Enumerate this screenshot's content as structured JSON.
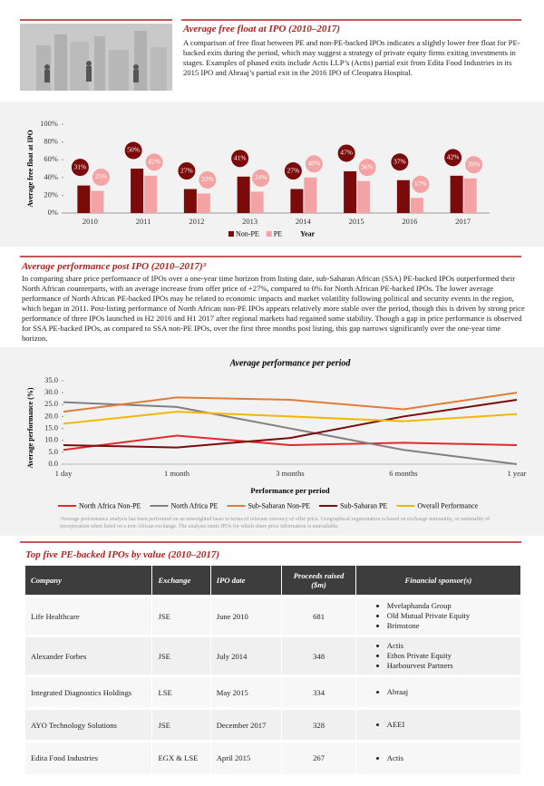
{
  "free_float": {
    "title": "Average free float at IPO (2010–2017)",
    "text": "A comparison of free float between PE and non-PE-backed IPOs indicates a slightly lower free float for PE-backed exits during the period, which may suggest a strategy of private equity firms exiting investments in stages. Examples of phased exits include Actis LLP’s (Actis) partial exit from Edita Food Industries in its 2015 IPO and Abraaj’s partial exit in the 2016 IPO of Cleopatra Hospital."
  },
  "performance": {
    "title": "Average performance post IPO (2010–2017)³",
    "text": "In comparing share price performance of IPOs over a one-year time horizon from listing date, sub-Saharan African (SSA) PE-backed IPOs outperformed their North African counterparts, with an average increase from offer price of +27%, compared to 0% for North African PE-backed IPOs. The lower average performance of North African PE-backed IPOs may be related to economic impacts and market volatility following political and security events in the region, which began in 2011. Post-listing performance of North African non-PE IPOs appears relatively more stable over the period, though this is driven by strong price performance of three IPOs launched in H2 2016 and H1 2017 after regional markets had regained some stability. Though a gap in price performance is observed for SSA PE-backed IPOs, as compared to SSA non-PE IPOs, over the first three months post listing, this gap narrows significantly over the one-year time horizon."
  },
  "chart_data": [
    {
      "type": "bar",
      "x_label": "Year",
      "y_label": "Average free float at IPO",
      "categories": [
        "2010",
        "2011",
        "2012",
        "2013",
        "2014",
        "2015",
        "2016",
        "2017"
      ],
      "series": [
        {
          "name": "Non-PE",
          "color": "#7b0a0a",
          "values": [
            31,
            50,
            27,
            41,
            27,
            47,
            37,
            42
          ],
          "value_labels": [
            "31%",
            "50%",
            "27%",
            "41%",
            "27%",
            "47%",
            "37%",
            "42%"
          ]
        },
        {
          "name": "PE",
          "color": "#f3a3a3",
          "values": [
            25,
            42,
            22,
            24,
            40,
            36,
            17,
            39
          ],
          "value_labels": [
            "25%",
            "42%",
            "22%",
            "24%",
            "40%",
            "36%",
            "17%",
            "39%"
          ]
        }
      ],
      "ylim": [
        0,
        100
      ],
      "yticks": [
        {
          "value": 0,
          "label": "0%"
        },
        {
          "value": 20,
          "label": "20%"
        },
        {
          "value": 40,
          "label": "40%"
        },
        {
          "value": 60,
          "label": "60%"
        },
        {
          "value": 80,
          "label": "80%"
        },
        {
          "value": 100,
          "label": "100%"
        }
      ],
      "grid": false
    },
    {
      "type": "line",
      "title": "Average performance per period",
      "x_label": "Performance per period",
      "y_label": "Average performance (%)",
      "categories": [
        "1 day",
        "1 month",
        "3 months",
        "6 months",
        "1 year"
      ],
      "series": [
        {
          "name": "North Africa Non-PE",
          "color": "#e02b2b",
          "values": [
            6,
            12,
            8,
            9,
            8
          ]
        },
        {
          "name": "North Africa PE",
          "color": "#808080",
          "values": [
            26,
            24,
            15,
            6,
            0
          ]
        },
        {
          "name": "Sub-Saharan Non-PE",
          "color": "#e07b39",
          "values": [
            22,
            28,
            27,
            23,
            30
          ]
        },
        {
          "name": "Sub-Saharan PE",
          "color": "#7b0a0a",
          "values": [
            8,
            7,
            11,
            20,
            27
          ]
        },
        {
          "name": "Overall Performance",
          "color": "#f2b705",
          "values": [
            17,
            22,
            20,
            18,
            21
          ]
        }
      ],
      "ylim": [
        0,
        35
      ],
      "yticks": [
        {
          "value": 0,
          "label": "0.0"
        },
        {
          "value": 5,
          "label": "5.0"
        },
        {
          "value": 10,
          "label": "10.0"
        },
        {
          "value": 15,
          "label": "15.0"
        },
        {
          "value": 20,
          "label": "20.0"
        },
        {
          "value": 25,
          "label": "25.0"
        },
        {
          "value": 30,
          "label": "30.0"
        },
        {
          "value": 35,
          "label": "35.0"
        }
      ],
      "grid": false,
      "footnote": "³Average performance analysis has been performed on an unweighted basis in terms of relevant currency of offer price. Geographical segmentation is based on exchange nationality, or nationality of incorporation when listed on a non-African exchange. The analysis omits IPOs for which share price information is unavailable."
    }
  ],
  "table": {
    "title": "Top five PE-backed IPOs by value (2010–2017)",
    "headers": [
      "Company",
      "Exchange",
      "IPO date",
      "Proceeds raised ($m)",
      "Financial sponsor(s)"
    ],
    "rows": [
      [
        "Life Healthcare",
        "JSE",
        "June 2010",
        681,
        [
          "Mvelaphanda Group",
          "Old Mutual Private Equity",
          "Brimstone"
        ]
      ],
      [
        "Alexander Forbes",
        "JSE",
        "July 2014",
        348,
        [
          "Actis",
          "Ethos Private Equity",
          "Harbourvest Partners"
        ]
      ],
      [
        "Integrated Diagnostics Holdings",
        "LSE",
        "May 2015",
        334,
        [
          "Abraaj"
        ]
      ],
      [
        "AYO Technology Solutions",
        "JSE",
        "December 2017",
        328,
        [
          "AEEI"
        ]
      ],
      [
        "Edita Food Industries",
        "EGX & LSE",
        "April 2015",
        267,
        [
          "Actis"
        ]
      ]
    ]
  }
}
